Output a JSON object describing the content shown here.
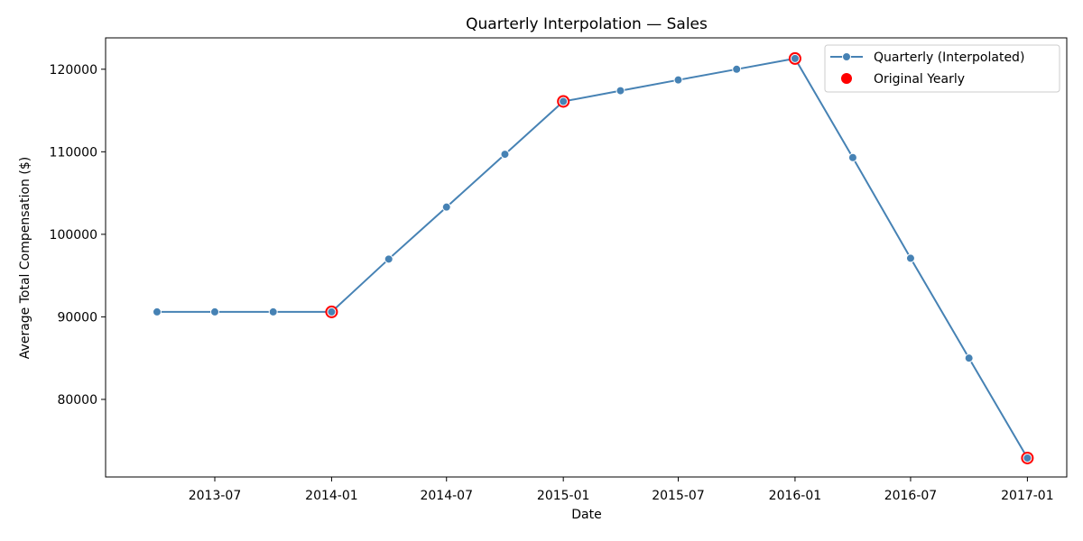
{
  "chart_data": {
    "type": "line",
    "title": "Quarterly Interpolation — Sales",
    "xlabel": "Date",
    "ylabel": "Average Total Compensation ($)",
    "x_ticks": [
      "2013-07",
      "2014-01",
      "2014-07",
      "2015-01",
      "2015-07",
      "2016-01",
      "2016-07",
      "2017-01"
    ],
    "y_ticks": [
      80000,
      90000,
      100000,
      110000,
      120000
    ],
    "xlim": [
      "2013-01-10",
      "2017-03-04"
    ],
    "ylim": [
      70600,
      123800
    ],
    "grid": false,
    "legend_position": "top-right",
    "series": [
      {
        "name": "Quarterly (Interpolated)",
        "style": "line-with-markers",
        "color": "#4682b4",
        "x": [
          "2013-04-01",
          "2013-07-01",
          "2013-10-01",
          "2014-01-01",
          "2014-04-01",
          "2014-07-01",
          "2014-10-01",
          "2015-01-01",
          "2015-04-01",
          "2015-07-01",
          "2015-10-01",
          "2016-01-01",
          "2016-04-01",
          "2016-07-01",
          "2016-10-01",
          "2017-01-01"
        ],
        "y": [
          90600,
          90600,
          90600,
          90600,
          97000,
          103300,
          109700,
          116100,
          117400,
          118700,
          120000,
          121300,
          109300,
          97100,
          85000,
          72900
        ]
      },
      {
        "name": "Original Yearly",
        "style": "markers",
        "color": "#ff0000",
        "x": [
          "2014-01-01",
          "2015-01-01",
          "2016-01-01",
          "2017-01-01"
        ],
        "y": [
          90600,
          116100,
          121300,
          72900
        ]
      }
    ]
  }
}
